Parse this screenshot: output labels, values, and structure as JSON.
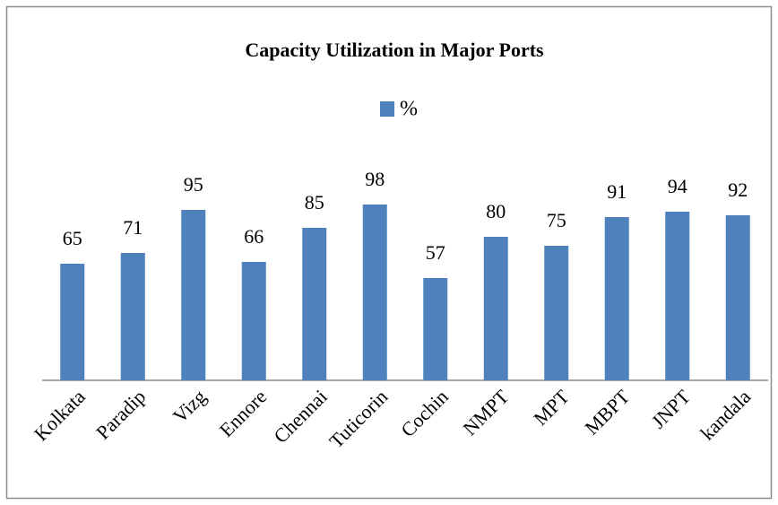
{
  "chart_data": {
    "type": "bar",
    "title": "Capacity Utilization in Major Ports",
    "categories": [
      "Kolkata",
      "Paradip",
      "Vizg",
      "Ennore",
      "Chennai",
      "Tuticorin",
      "Cochin",
      "NMPT",
      "MPT",
      "MBPT",
      "JNPT",
      "kandala"
    ],
    "series": [
      {
        "name": "%",
        "color": "#4f81bd",
        "values": [
          65,
          71,
          95,
          66,
          85,
          98,
          57,
          80,
          75,
          91,
          94,
          92
        ]
      }
    ],
    "ylim": [
      0,
      120
    ],
    "legend": "top"
  }
}
